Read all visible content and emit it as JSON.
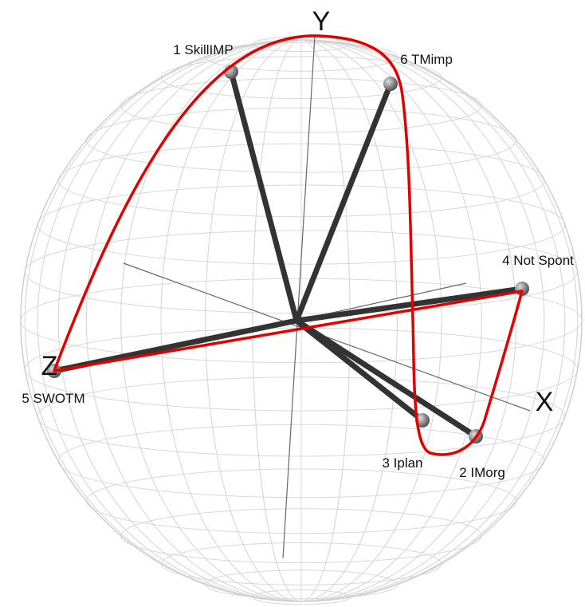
{
  "axes": {
    "x": "X",
    "y": "Y",
    "z": "Z"
  },
  "nodes": [
    {
      "label": "1 SkillIMP"
    },
    {
      "label": "6 TMimp"
    },
    {
      "label": "4 Not Spont"
    },
    {
      "label": "5 SWOTM"
    },
    {
      "label": "3 Iplan"
    },
    {
      "label": "2 IMorg"
    }
  ]
}
